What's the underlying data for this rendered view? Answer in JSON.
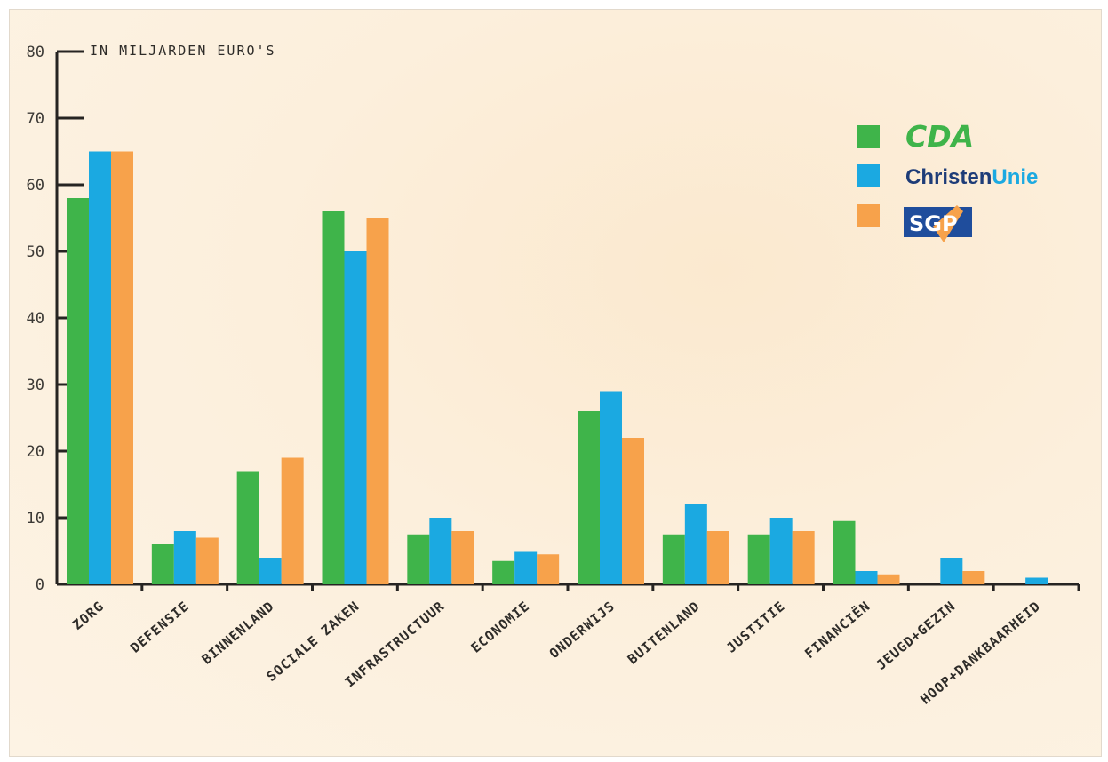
{
  "chart_data": {
    "type": "bar",
    "unit_label": "IN MILJARDEN EURO'S",
    "ylim": [
      0,
      80
    ],
    "yticks": [
      0,
      10,
      20,
      30,
      40,
      50,
      60,
      70,
      80
    ],
    "categories": [
      "Zorg",
      "Defensie",
      "Binnenland",
      "Sociale zaken",
      "Infrastructuur",
      "Economie",
      "Onderwijs",
      "Buitenland",
      "Justitie",
      "Financiën",
      "Jeugd+Gezin",
      "Hoop+Dankbaarheid"
    ],
    "series": [
      {
        "name": "CDA",
        "color": "#3fb44a",
        "values": [
          58,
          6,
          17,
          56,
          7.5,
          3.5,
          26,
          7.5,
          7.5,
          9.5,
          0,
          0
        ]
      },
      {
        "name": "ChristenUnie",
        "color": "#1ba9e1",
        "values": [
          65,
          8,
          4,
          50,
          10,
          5,
          29,
          12,
          10,
          2,
          4,
          1
        ]
      },
      {
        "name": "SGP",
        "color": "#f7a24b",
        "values": [
          65,
          7,
          19,
          55,
          8,
          4.5,
          22,
          8,
          8,
          1.5,
          2,
          0
        ]
      }
    ],
    "legend_position": "top-right",
    "legend": {
      "cda_text": "CDA",
      "cu_part1": "Christen",
      "cu_part2": "Unie",
      "sgp_text": "SGP"
    },
    "grid": false
  }
}
